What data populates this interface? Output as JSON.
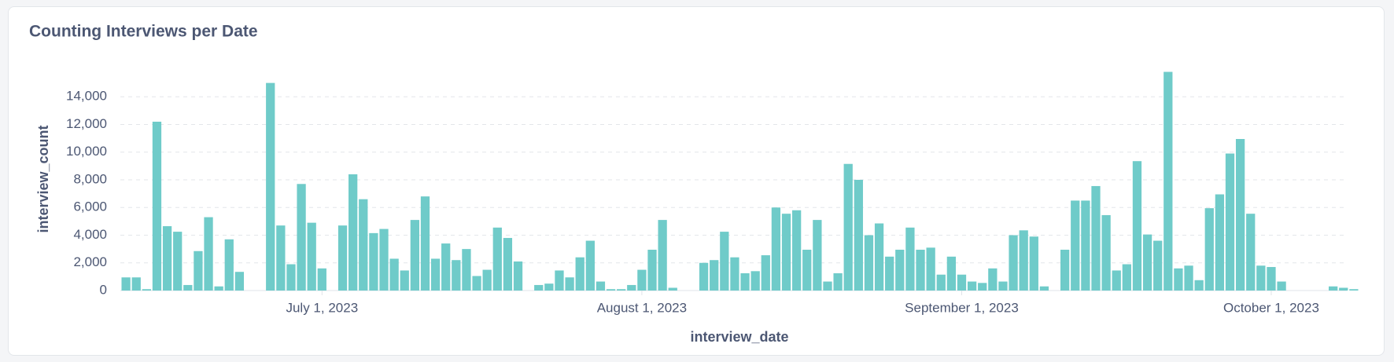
{
  "chart_data": {
    "type": "bar",
    "title": "Counting Interviews per Date",
    "x_label": "interview_date",
    "y_label": "interview_count",
    "color": "#6fcbc9",
    "grid": true,
    "x": [
      "2023-06-12",
      "2023-06-13",
      "2023-06-14",
      "2023-06-15",
      "2023-06-16",
      "2023-06-17",
      "2023-06-18",
      "2023-06-19",
      "2023-06-20",
      "2023-06-21",
      "2023-06-22",
      "2023-06-23",
      "2023-06-26",
      "2023-06-27",
      "2023-06-28",
      "2023-06-29",
      "2023-06-30",
      "2023-07-01",
      "2023-07-03",
      "2023-07-04",
      "2023-07-05",
      "2023-07-06",
      "2023-07-07",
      "2023-07-08",
      "2023-07-09",
      "2023-07-10",
      "2023-07-11",
      "2023-07-12",
      "2023-07-13",
      "2023-07-14",
      "2023-07-15",
      "2023-07-16",
      "2023-07-17",
      "2023-07-18",
      "2023-07-19",
      "2023-07-20",
      "2023-07-22",
      "2023-07-23",
      "2023-07-24",
      "2023-07-25",
      "2023-07-26",
      "2023-07-27",
      "2023-07-28",
      "2023-07-29",
      "2023-07-30",
      "2023-07-31",
      "2023-08-01",
      "2023-08-02",
      "2023-08-03",
      "2023-08-04",
      "2023-08-07",
      "2023-08-08",
      "2023-08-09",
      "2023-08-10",
      "2023-08-11",
      "2023-08-12",
      "2023-08-13",
      "2023-08-14",
      "2023-08-15",
      "2023-08-16",
      "2023-08-17",
      "2023-08-18",
      "2023-08-19",
      "2023-08-20",
      "2023-08-21",
      "2023-08-22",
      "2023-08-23",
      "2023-08-24",
      "2023-08-25",
      "2023-08-26",
      "2023-08-27",
      "2023-08-28",
      "2023-08-29",
      "2023-08-30",
      "2023-08-31",
      "2023-09-01",
      "2023-09-02",
      "2023-09-03",
      "2023-09-04",
      "2023-09-05",
      "2023-09-06",
      "2023-09-07",
      "2023-09-08",
      "2023-09-09",
      "2023-09-11",
      "2023-09-12",
      "2023-09-13",
      "2023-09-14",
      "2023-09-15",
      "2023-09-16",
      "2023-09-17",
      "2023-09-18",
      "2023-09-19",
      "2023-09-20",
      "2023-09-21",
      "2023-09-22",
      "2023-09-23",
      "2023-09-24",
      "2023-09-25",
      "2023-09-26",
      "2023-09-27",
      "2023-09-28",
      "2023-09-29",
      "2023-09-30",
      "2023-10-01",
      "2023-10-02",
      "2023-10-07",
      "2023-10-08",
      "2023-10-09"
    ],
    "values": [
      950,
      950,
      100,
      12200,
      4650,
      4250,
      400,
      2850,
      5300,
      300,
      3700,
      1350,
      15000,
      4700,
      1900,
      7700,
      4900,
      1600,
      4700,
      8400,
      6600,
      4150,
      4450,
      2300,
      1450,
      5100,
      6800,
      2300,
      3400,
      2200,
      3000,
      1050,
      1500,
      4550,
      3800,
      2100,
      400,
      500,
      1450,
      950,
      2400,
      3600,
      650,
      100,
      100,
      400,
      1500,
      2950,
      5100,
      200,
      2000,
      2200,
      4250,
      2400,
      1250,
      1400,
      2550,
      6000,
      5550,
      5800,
      2950,
      5100,
      650,
      1250,
      9150,
      8000,
      4000,
      4850,
      2450,
      2950,
      4550,
      2950,
      3100,
      1150,
      2450,
      1150,
      650,
      550,
      1600,
      650,
      4000,
      4350,
      3900,
      300,
      2950,
      6500,
      6500,
      7550,
      5450,
      1450,
      1900,
      9350,
      4050,
      3600,
      15800,
      1600,
      1800,
      750,
      5950,
      6950,
      9900,
      10950,
      5550,
      1800,
      1700,
      650,
      300,
      200,
      100
    ],
    "xlim": [
      "2023-06-11",
      "2023-10-10"
    ],
    "xticks": [
      {
        "value": "2023-07-01",
        "label": "July 1, 2023"
      },
      {
        "value": "2023-08-01",
        "label": "August 1, 2023"
      },
      {
        "value": "2023-09-01",
        "label": "September 1, 2023"
      },
      {
        "value": "2023-10-01",
        "label": "October 1, 2023"
      }
    ],
    "ylim": [
      0,
      16000
    ],
    "yticks": [
      0,
      {
        "value": 2000,
        "label": "2,000"
      },
      {
        "value": 4000,
        "label": "4,000"
      },
      {
        "value": 6000,
        "label": "6,000"
      },
      {
        "value": 8000,
        "label": "8,000"
      },
      {
        "value": 10000,
        "label": "10,000"
      },
      {
        "value": 12000,
        "label": "12,000"
      },
      {
        "value": 14000,
        "label": "14,000"
      }
    ]
  }
}
